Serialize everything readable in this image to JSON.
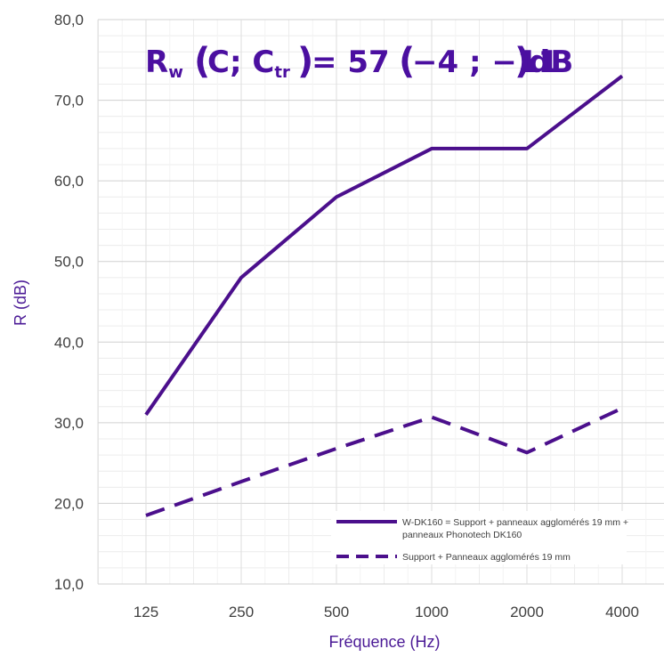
{
  "chart_data": {
    "type": "line",
    "categories": [
      "125",
      "250",
      "500",
      "1000",
      "2000",
      "4000"
    ],
    "series": [
      {
        "name": "W-DK160 = Support + panneaux agglomérés 19 mm + panneaux Phonotech DK160",
        "values": [
          31.0,
          48.0,
          58.0,
          64.0,
          64.0,
          73.0
        ],
        "style": "solid",
        "color": "#4b0f8c"
      },
      {
        "name": "Support + Panneaux agglomérés 19 mm",
        "values": [
          18.5,
          22.7,
          26.8,
          30.7,
          26.3,
          31.8
        ],
        "style": "dashed",
        "color": "#4b0f8c"
      }
    ],
    "xlabel": "Fréquence (Hz)",
    "ylabel": "R (dB)",
    "ylim": [
      10,
      80
    ],
    "yticks": [
      "10,0",
      "20,0",
      "30,0",
      "40,0",
      "50,0",
      "60,0",
      "70,0",
      "80,0"
    ],
    "grid": true,
    "legend_position": "bottom-right",
    "annotation": {
      "rw_symbol": "R",
      "rw_sub": "w",
      "c_label": "C; C",
      "c_sub": "tr",
      "equals": "= 57",
      "values": "−4 ; −11",
      "unit": "dB"
    }
  }
}
